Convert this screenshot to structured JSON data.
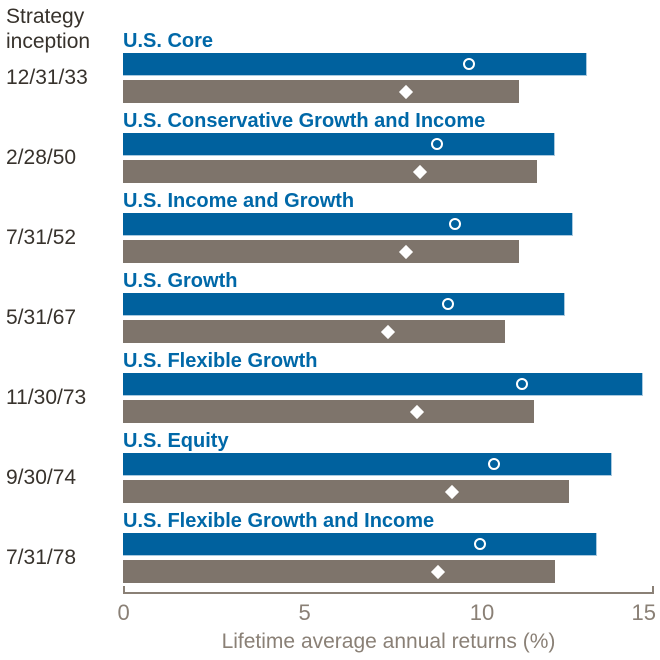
{
  "header": {
    "line1": "Strategy",
    "line2": "inception"
  },
  "chart_data": {
    "type": "bar",
    "orientation": "horizontal",
    "unit": "percent",
    "x_min": 0,
    "x_max": 15,
    "x_ticks": [
      "0",
      "5",
      "10",
      "15"
    ],
    "xlabel": "Lifetime average annual returns (%)",
    "colors": {
      "blue_bar": "#00619e",
      "gray_bar": "#7e746b",
      "strategy_label_text": "#0068a8",
      "axis_text": "#8a8076",
      "date_text": "#37322c",
      "marker": "#ffffff"
    },
    "marker_shapes": {
      "on_blue_bar": "white-outline-circle",
      "on_gray_bar": "white-filled-diamond"
    },
    "strategies": [
      {
        "name": "U.S. Core",
        "inception": "12/31/33",
        "blue_bar": 13.1,
        "gray_bar": 11.2,
        "circle_marker": 9.8,
        "diamond_marker": 8.0
      },
      {
        "name": "U.S. Conservative Growth and Income",
        "inception": "2/28/50",
        "blue_bar": 12.2,
        "gray_bar": 11.7,
        "circle_marker": 8.9,
        "diamond_marker": 8.4
      },
      {
        "name": "U.S. Income and Growth",
        "inception": "7/31/52",
        "blue_bar": 12.7,
        "gray_bar": 11.2,
        "circle_marker": 9.4,
        "diamond_marker": 8.0
      },
      {
        "name": "U.S. Growth",
        "inception": "5/31/67",
        "blue_bar": 12.5,
        "gray_bar": 10.8,
        "circle_marker": 9.2,
        "diamond_marker": 7.5
      },
      {
        "name": "U.S. Flexible Growth",
        "inception": "11/30/73",
        "blue_bar": 14.7,
        "gray_bar": 11.6,
        "circle_marker": 11.3,
        "diamond_marker": 8.3
      },
      {
        "name": "U.S. Equity",
        "inception": "9/30/74",
        "blue_bar": 13.8,
        "gray_bar": 12.6,
        "circle_marker": 10.5,
        "diamond_marker": 9.3
      },
      {
        "name": "U.S. Flexible Growth and Income",
        "inception": "7/31/78",
        "blue_bar": 13.4,
        "gray_bar": 12.2,
        "circle_marker": 10.1,
        "diamond_marker": 8.9
      }
    ]
  }
}
